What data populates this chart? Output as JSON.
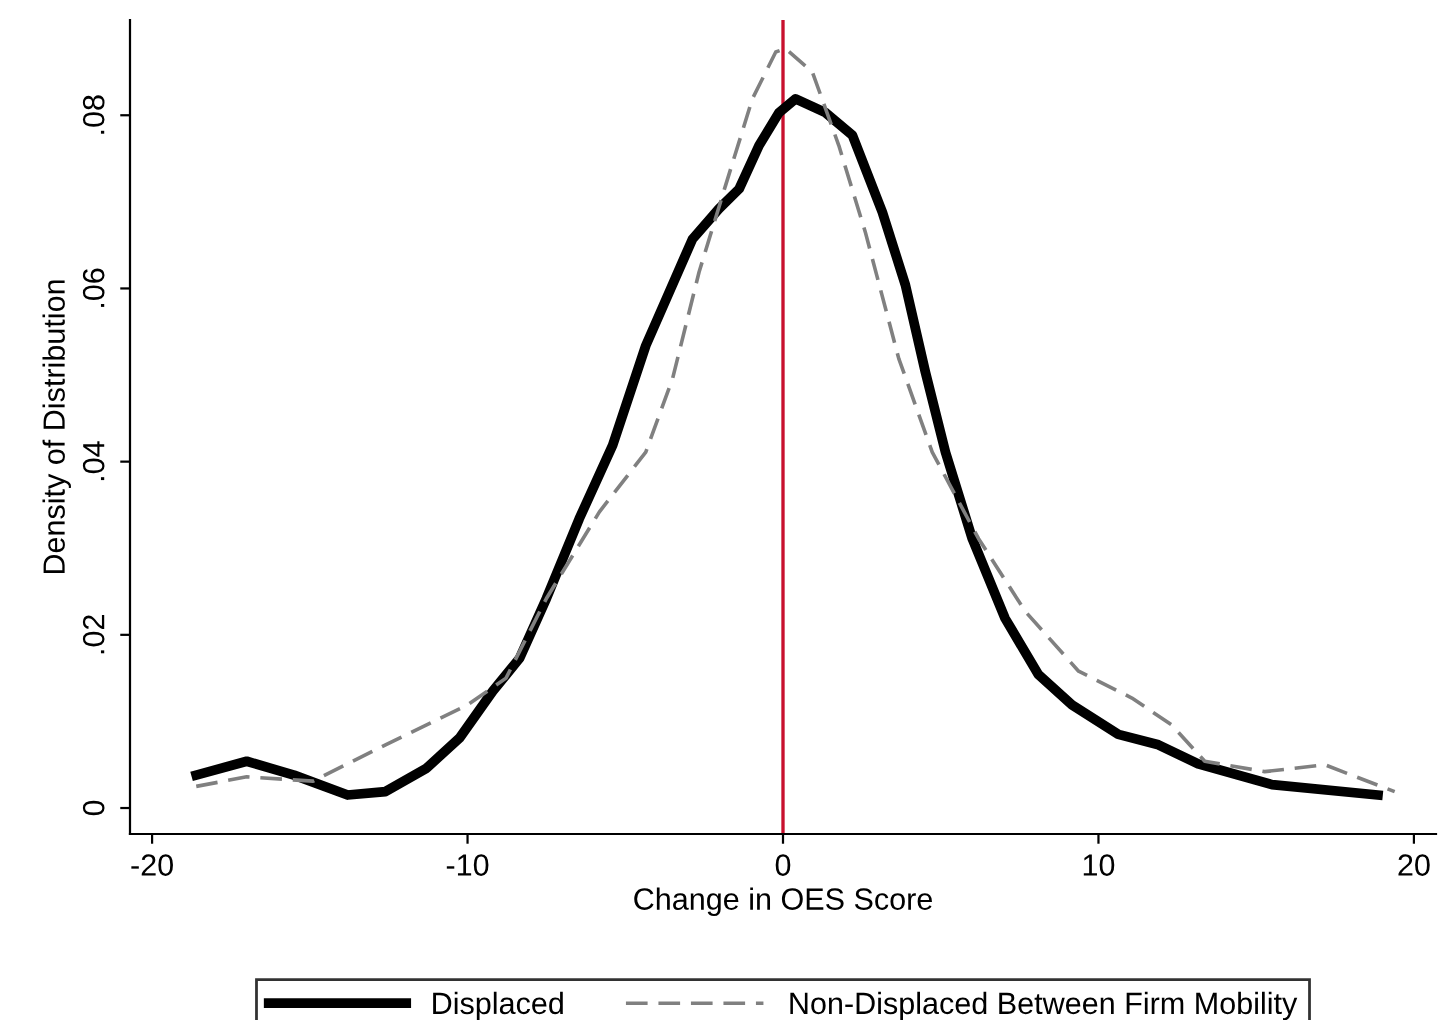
{
  "chart_data": {
    "type": "line",
    "xlabel": "Change in OES Score",
    "ylabel": "Density of Distribution",
    "xlim": [
      -20.7,
      20.7
    ],
    "ylim": [
      -0.003,
      0.091
    ],
    "xticks": [
      -20,
      -10,
      0,
      10,
      20
    ],
    "yticks": [
      0,
      {
        "value": 0.02,
        "label": ".02"
      },
      {
        "value": 0.04,
        "label": ".04"
      },
      {
        "value": 0.06,
        "label": ".06"
      },
      {
        "value": 0.08,
        "label": ".08"
      }
    ],
    "grid": false,
    "legend": "bottom",
    "marker": "none",
    "ref_lines": [
      {
        "axis": "x",
        "value": 0,
        "color": "#c8102e",
        "line_style": "solid"
      }
    ],
    "series": [
      {
        "name": "Displaced",
        "color": "#000000",
        "line_style": "solid",
        "x": [
          -18.6,
          -17.0,
          -15.5,
          -13.8,
          -12.6,
          -11.3,
          -10.25,
          -9.2,
          -8.35,
          -7.5,
          -6.46,
          -5.4,
          -4.35,
          -3.7,
          -2.87,
          -2.03,
          -1.39,
          -0.76,
          -0.13,
          0.4,
          1.35,
          2.2,
          3.15,
          3.88,
          4.51,
          5.15,
          6.0,
          7.04,
          8.1,
          9.16,
          10.63,
          11.9,
          13.16,
          15.5,
          18.86
        ],
        "values": [
          0.0038,
          0.0054,
          0.0038,
          0.0015,
          0.0019,
          0.0046,
          0.0081,
          0.0135,
          0.0173,
          0.0242,
          0.0334,
          0.0419,
          0.0534,
          0.0588,
          0.0657,
          0.0692,
          0.0715,
          0.0765,
          0.0803,
          0.0819,
          0.0803,
          0.0777,
          0.0688,
          0.0604,
          0.0504,
          0.0411,
          0.0311,
          0.0219,
          0.0154,
          0.0119,
          0.0085,
          0.0073,
          0.0051,
          0.0027,
          0.0015
        ]
      },
      {
        "name": "Non-Displaced Between Firm Mobility",
        "color": "#808080",
        "line_style": "dashed",
        "x": [
          -18.6,
          -17.0,
          -14.9,
          -12.6,
          -10.0,
          -8.78,
          -7.5,
          -5.82,
          -4.35,
          -3.5,
          -2.66,
          -1.82,
          -0.97,
          -0.23,
          0.08,
          0.93,
          1.77,
          2.61,
          3.67,
          4.73,
          6.2,
          7.68,
          9.37,
          11.06,
          12.32,
          13.37,
          15.27,
          17.17,
          19.39
        ],
        "values": [
          0.0025,
          0.0036,
          0.0031,
          0.0073,
          0.0119,
          0.015,
          0.0242,
          0.0342,
          0.0411,
          0.0496,
          0.0619,
          0.0719,
          0.0819,
          0.0873,
          0.0877,
          0.085,
          0.0765,
          0.0665,
          0.0519,
          0.0411,
          0.0311,
          0.0227,
          0.0158,
          0.0127,
          0.0096,
          0.0054,
          0.0042,
          0.005,
          0.0019
        ]
      }
    ]
  }
}
